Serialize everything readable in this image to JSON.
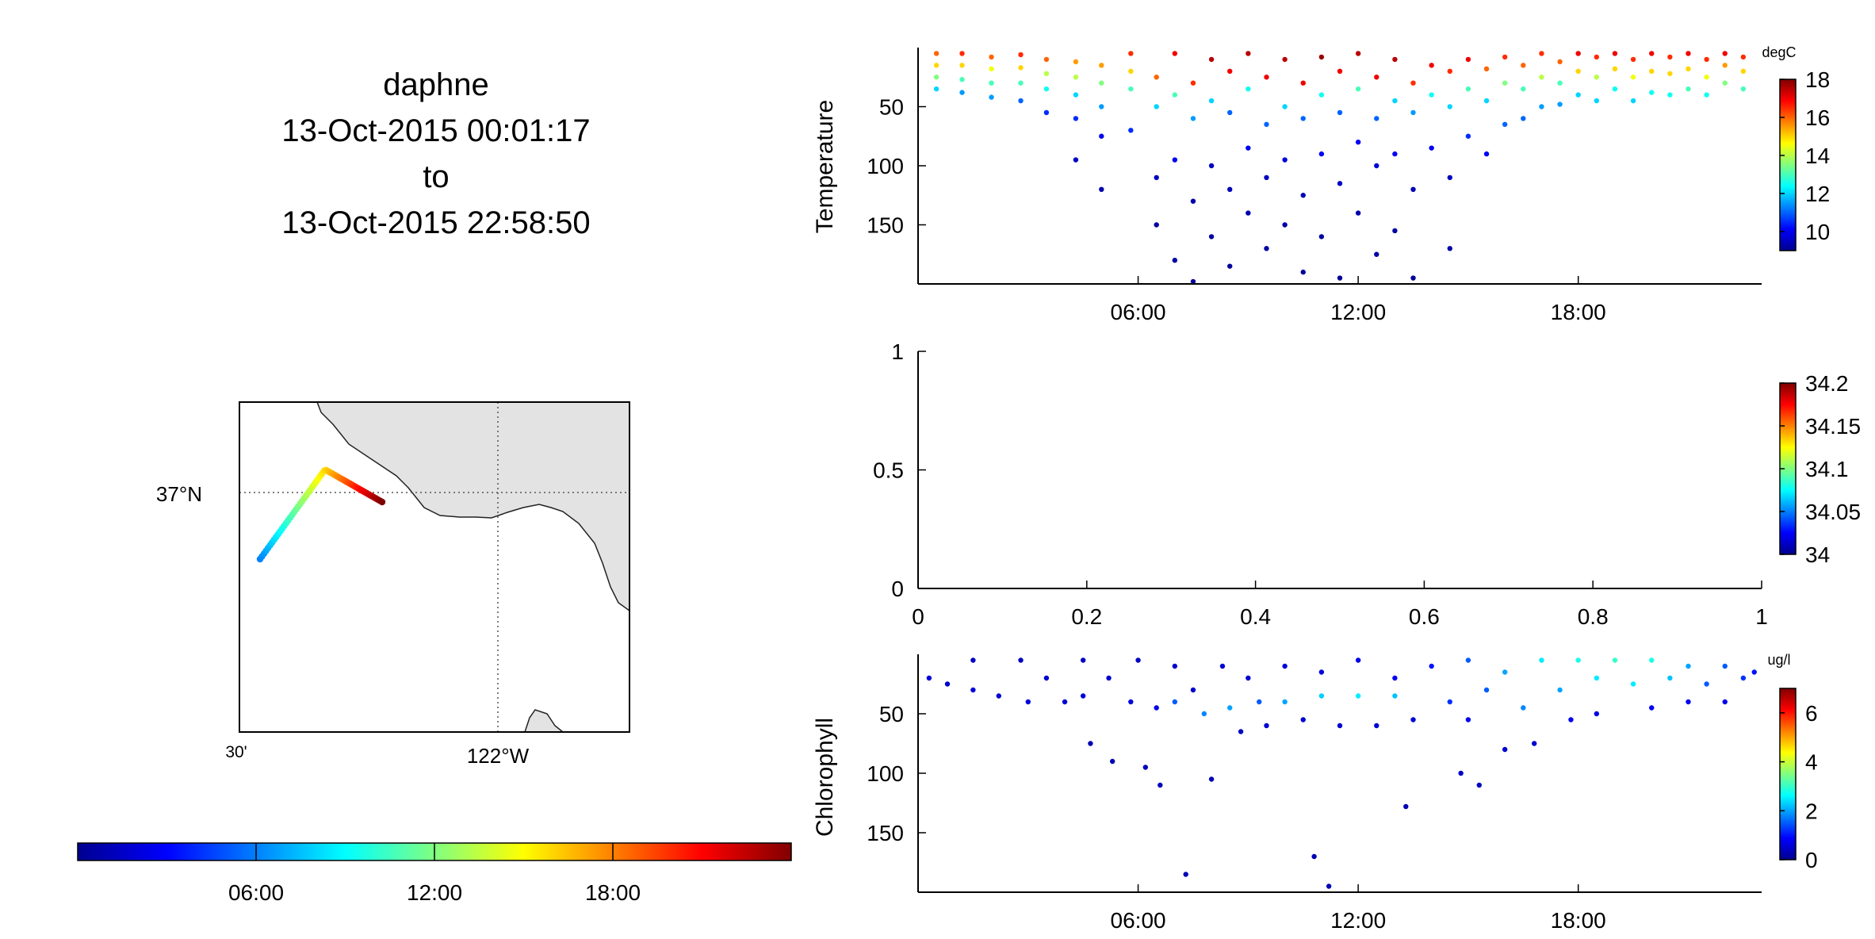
{
  "header": {
    "lines": [
      "daphne",
      "13-Oct-2015 00:01:17",
      "to",
      "13-Oct-2015 22:58:50"
    ]
  },
  "colors": {
    "jet": [
      "#00008f",
      "#0000ff",
      "#0080ff",
      "#00ffff",
      "#80ff80",
      "#ffff00",
      "#ff8000",
      "#ff0000",
      "#800000"
    ],
    "land": "#e3e3e3",
    "ocean": "#ffffff"
  },
  "chart_data": [
    {
      "id": "temperature",
      "type": "scatter",
      "ylabel": "Temperature",
      "units": "degC",
      "x_ticks": [
        "06:00",
        "12:00",
        "18:00"
      ],
      "x_range_hours": [
        0,
        23
      ],
      "y_ticks": [
        50,
        100,
        150
      ],
      "y_reversed": true,
      "ylim": [
        0,
        200
      ],
      "clim": [
        9,
        18
      ],
      "colorbar_ticks": [
        10,
        12,
        14,
        16,
        18
      ],
      "points": [
        [
          0.5,
          5,
          16
        ],
        [
          0.5,
          15,
          15
        ],
        [
          0.5,
          25,
          13.5
        ],
        [
          0.5,
          35,
          12
        ],
        [
          1.2,
          5,
          16.5
        ],
        [
          1.2,
          15,
          15
        ],
        [
          1.2,
          27,
          13
        ],
        [
          1.2,
          38,
          11.5
        ],
        [
          2,
          8,
          16
        ],
        [
          2,
          18,
          14.5
        ],
        [
          2,
          30,
          13
        ],
        [
          2,
          42,
          11.5
        ],
        [
          2.8,
          6,
          16.5
        ],
        [
          2.8,
          17,
          15
        ],
        [
          2.8,
          30,
          13
        ],
        [
          2.8,
          45,
          11
        ],
        [
          3.5,
          10,
          16
        ],
        [
          3.5,
          22,
          14
        ],
        [
          3.5,
          35,
          12.5
        ],
        [
          3.5,
          55,
          10.5
        ],
        [
          4.3,
          12,
          15.5
        ],
        [
          4.3,
          25,
          14
        ],
        [
          4.3,
          40,
          12
        ],
        [
          4.3,
          60,
          10.5
        ],
        [
          4.3,
          95,
          9.5
        ],
        [
          5,
          15,
          15.5
        ],
        [
          5,
          30,
          13.5
        ],
        [
          5,
          50,
          11.5
        ],
        [
          5,
          75,
          10
        ],
        [
          5,
          120,
          9.3
        ],
        [
          5.8,
          5,
          16.5
        ],
        [
          5.8,
          20,
          15
        ],
        [
          5.8,
          35,
          13
        ],
        [
          5.8,
          70,
          10.5
        ],
        [
          6.5,
          25,
          16
        ],
        [
          6.5,
          50,
          12
        ],
        [
          6.5,
          110,
          9.5
        ],
        [
          6.5,
          150,
          9.2
        ],
        [
          7,
          5,
          17
        ],
        [
          7,
          40,
          13
        ],
        [
          7,
          95,
          10
        ],
        [
          7,
          180,
          9.2
        ],
        [
          7.5,
          30,
          16.5
        ],
        [
          7.5,
          60,
          11.5
        ],
        [
          7.5,
          130,
          9.3
        ],
        [
          7.5,
          198,
          9.1
        ],
        [
          8,
          10,
          17.5
        ],
        [
          8,
          45,
          12
        ],
        [
          8,
          100,
          9.5
        ],
        [
          8,
          160,
          9.2
        ],
        [
          8.5,
          20,
          17
        ],
        [
          8.5,
          55,
          11
        ],
        [
          8.5,
          120,
          9.4
        ],
        [
          8.5,
          185,
          9.1
        ],
        [
          9,
          5,
          17.5
        ],
        [
          9,
          35,
          12.5
        ],
        [
          9,
          85,
          10
        ],
        [
          9,
          140,
          9.3
        ],
        [
          9.5,
          25,
          17
        ],
        [
          9.5,
          65,
          11
        ],
        [
          9.5,
          110,
          9.5
        ],
        [
          9.5,
          170,
          9.2
        ],
        [
          10,
          10,
          17.5
        ],
        [
          10,
          50,
          12
        ],
        [
          10,
          95,
          9.8
        ],
        [
          10,
          150,
          9.2
        ],
        [
          10.5,
          30,
          17
        ],
        [
          10.5,
          60,
          11
        ],
        [
          10.5,
          125,
          9.4
        ],
        [
          10.5,
          190,
          9.1
        ],
        [
          11,
          8,
          17.8
        ],
        [
          11,
          40,
          12.5
        ],
        [
          11,
          90,
          10
        ],
        [
          11,
          160,
          9.2
        ],
        [
          11.5,
          20,
          17
        ],
        [
          11.5,
          55,
          11
        ],
        [
          11.5,
          115,
          9.5
        ],
        [
          11.5,
          195,
          9.1
        ],
        [
          12,
          5,
          17.5
        ],
        [
          12,
          35,
          13
        ],
        [
          12,
          80,
          10
        ],
        [
          12,
          140,
          9.3
        ],
        [
          12.5,
          25,
          17
        ],
        [
          12.5,
          60,
          11
        ],
        [
          12.5,
          100,
          9.7
        ],
        [
          12.5,
          175,
          9.2
        ],
        [
          13,
          10,
          17.5
        ],
        [
          13,
          45,
          12
        ],
        [
          13,
          90,
          10
        ],
        [
          13,
          155,
          9.2
        ],
        [
          13.5,
          30,
          16.5
        ],
        [
          13.5,
          55,
          11.5
        ],
        [
          13.5,
          120,
          9.4
        ],
        [
          13.5,
          195,
          9.1
        ],
        [
          14,
          15,
          17
        ],
        [
          14,
          40,
          12.5
        ],
        [
          14,
          85,
          10
        ],
        [
          14.5,
          20,
          16.5
        ],
        [
          14.5,
          50,
          12
        ],
        [
          14.5,
          110,
          9.5
        ],
        [
          14.5,
          170,
          9.2
        ],
        [
          15,
          10,
          17
        ],
        [
          15,
          35,
          13
        ],
        [
          15,
          75,
          10.5
        ],
        [
          15.5,
          18,
          16
        ],
        [
          15.5,
          45,
          12
        ],
        [
          15.5,
          90,
          10
        ],
        [
          16,
          8,
          16.5
        ],
        [
          16,
          30,
          13.5
        ],
        [
          16,
          65,
          11
        ],
        [
          16.5,
          15,
          16
        ],
        [
          16.5,
          35,
          13
        ],
        [
          16.5,
          60,
          11
        ],
        [
          17,
          5,
          16.5
        ],
        [
          17,
          25,
          14
        ],
        [
          17,
          50,
          11.5
        ],
        [
          17.5,
          12,
          16
        ],
        [
          17.5,
          30,
          13
        ],
        [
          17.5,
          48,
          11.5
        ],
        [
          18,
          5,
          17
        ],
        [
          18,
          20,
          15
        ],
        [
          18,
          40,
          12
        ],
        [
          18.5,
          8,
          16.5
        ],
        [
          18.5,
          25,
          14
        ],
        [
          18.5,
          45,
          12
        ],
        [
          19,
          5,
          17
        ],
        [
          19,
          18,
          15
        ],
        [
          19,
          35,
          12.5
        ],
        [
          19.5,
          10,
          16.5
        ],
        [
          19.5,
          25,
          14.5
        ],
        [
          19.5,
          45,
          12
        ],
        [
          20,
          5,
          17
        ],
        [
          20,
          20,
          15
        ],
        [
          20,
          38,
          12.5
        ],
        [
          20.5,
          8,
          16.5
        ],
        [
          20.5,
          22,
          15
        ],
        [
          20.5,
          40,
          12.5
        ],
        [
          21,
          5,
          17
        ],
        [
          21,
          18,
          15
        ],
        [
          21,
          35,
          13
        ],
        [
          21.5,
          10,
          16.5
        ],
        [
          21.5,
          25,
          14.5
        ],
        [
          21.5,
          40,
          12.5
        ],
        [
          22,
          5,
          17
        ],
        [
          22,
          15,
          15.5
        ],
        [
          22,
          30,
          13.5
        ],
        [
          22.5,
          8,
          16.5
        ],
        [
          22.5,
          20,
          15
        ],
        [
          22.5,
          35,
          13
        ]
      ]
    },
    {
      "id": "salinity",
      "type": "scatter",
      "ylabel": "",
      "x_ticks": [
        "0",
        "0.2",
        "0.4",
        "0.6",
        "0.8",
        "1"
      ],
      "y_ticks": [
        "0",
        "0.5",
        "1"
      ],
      "xlim": [
        0,
        1
      ],
      "ylim": [
        0,
        1
      ],
      "clim": [
        34,
        34.2
      ],
      "colorbar_ticks": [
        "34",
        "34.05",
        "34.1",
        "34.15",
        "34.2"
      ],
      "points": []
    },
    {
      "id": "chlorophyll",
      "type": "scatter",
      "ylabel": "Chlorophyll",
      "units": "ug/l",
      "x_ticks": [
        "06:00",
        "12:00",
        "18:00"
      ],
      "x_range_hours": [
        0,
        23
      ],
      "y_ticks": [
        50,
        100,
        150
      ],
      "y_reversed": true,
      "ylim": [
        0,
        200
      ],
      "clim": [
        0,
        7
      ],
      "colorbar_ticks": [
        0,
        2,
        4,
        6
      ],
      "points": [
        [
          0.3,
          20,
          0.6
        ],
        [
          0.8,
          25,
          0.5
        ],
        [
          1.5,
          5,
          0.4
        ],
        [
          1.5,
          30,
          0.6
        ],
        [
          2.2,
          35,
          0.5
        ],
        [
          2.8,
          5,
          0.4
        ],
        [
          3,
          40,
          0.6
        ],
        [
          3.5,
          20,
          0.5
        ],
        [
          4,
          40,
          0.5
        ],
        [
          4.5,
          5,
          0.4
        ],
        [
          4.5,
          35,
          0.6
        ],
        [
          4.7,
          75,
          0.3
        ],
        [
          5.2,
          20,
          0.5
        ],
        [
          5.3,
          90,
          0.3
        ],
        [
          5.8,
          40,
          0.6
        ],
        [
          6,
          5,
          0.4
        ],
        [
          6.2,
          95,
          0.3
        ],
        [
          6.5,
          45,
          0.7
        ],
        [
          6.6,
          110,
          0.3
        ],
        [
          7,
          10,
          0.5
        ],
        [
          7,
          40,
          1.5
        ],
        [
          7.3,
          185,
          0.3
        ],
        [
          7.5,
          30,
          0.5
        ],
        [
          7.8,
          50,
          1.8
        ],
        [
          8,
          105,
          0.3
        ],
        [
          8.3,
          10,
          0.5
        ],
        [
          8.5,
          45,
          2
        ],
        [
          8.8,
          65,
          0.4
        ],
        [
          9,
          20,
          0.5
        ],
        [
          9.3,
          40,
          1.5
        ],
        [
          9.5,
          60,
          0.5
        ],
        [
          10,
          10,
          0.6
        ],
        [
          10,
          40,
          2
        ],
        [
          10.5,
          55,
          0.5
        ],
        [
          10.8,
          170,
          0.3
        ],
        [
          11,
          15,
          0.6
        ],
        [
          11,
          35,
          2.3
        ],
        [
          11.2,
          195,
          0.3
        ],
        [
          11.5,
          60,
          0.5
        ],
        [
          12,
          5,
          0.7
        ],
        [
          12,
          35,
          2.5
        ],
        [
          12.5,
          60,
          0.5
        ],
        [
          13,
          20,
          0.8
        ],
        [
          13,
          35,
          2.2
        ],
        [
          13.3,
          128,
          0.3
        ],
        [
          13.5,
          55,
          0.6
        ],
        [
          14,
          10,
          1
        ],
        [
          14.5,
          40,
          1.2
        ],
        [
          14.8,
          100,
          0.4
        ],
        [
          15,
          5,
          1.5
        ],
        [
          15,
          55,
          0.8
        ],
        [
          15.3,
          110,
          0.4
        ],
        [
          15.5,
          30,
          1.5
        ],
        [
          16,
          15,
          2
        ],
        [
          16,
          80,
          0.5
        ],
        [
          16.5,
          45,
          1.8
        ],
        [
          16.8,
          75,
          0.5
        ],
        [
          17,
          5,
          2.5
        ],
        [
          17.5,
          30,
          2
        ],
        [
          17.8,
          55,
          0.8
        ],
        [
          18,
          5,
          2.8
        ],
        [
          18.5,
          20,
          2.5
        ],
        [
          18.5,
          50,
          0.7
        ],
        [
          19,
          5,
          3
        ],
        [
          19.5,
          25,
          2.5
        ],
        [
          20,
          5,
          2.8
        ],
        [
          20,
          45,
          0.8
        ],
        [
          20.5,
          20,
          2.2
        ],
        [
          21,
          10,
          2
        ],
        [
          21,
          40,
          0.8
        ],
        [
          21.5,
          25,
          1.5
        ],
        [
          22,
          10,
          1.5
        ],
        [
          22,
          40,
          0.7
        ],
        [
          22.5,
          20,
          1.2
        ],
        [
          22.8,
          15,
          1
        ]
      ]
    }
  ],
  "map": {
    "lat_label": "37°N",
    "lon_label_left": "30'",
    "lon_label_center": "122°W"
  },
  "time_colorbar": {
    "ticks": [
      "06:00",
      "12:00",
      "18:00"
    ]
  }
}
